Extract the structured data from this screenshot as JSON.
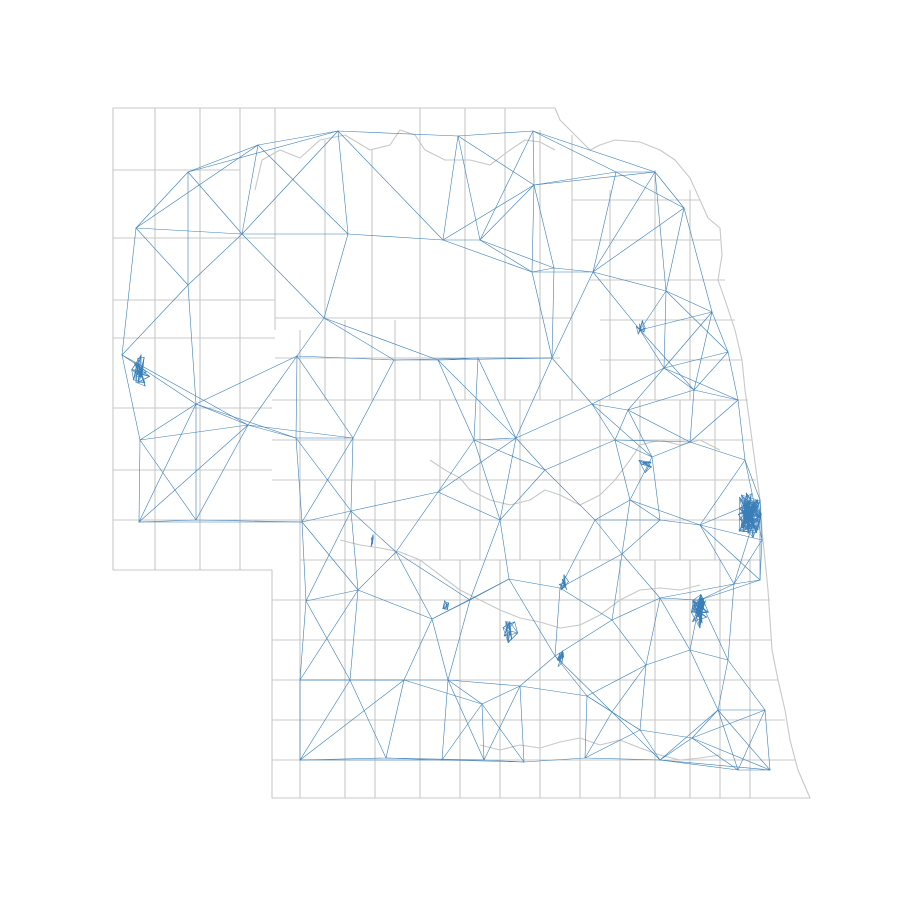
{
  "figure": {
    "type": "graph-over-map",
    "region": "Nebraska",
    "boundary_color": "#c8c8c8",
    "edge_color": "#3b7fb8",
    "background_color": "#ffffff",
    "labels": []
  }
}
